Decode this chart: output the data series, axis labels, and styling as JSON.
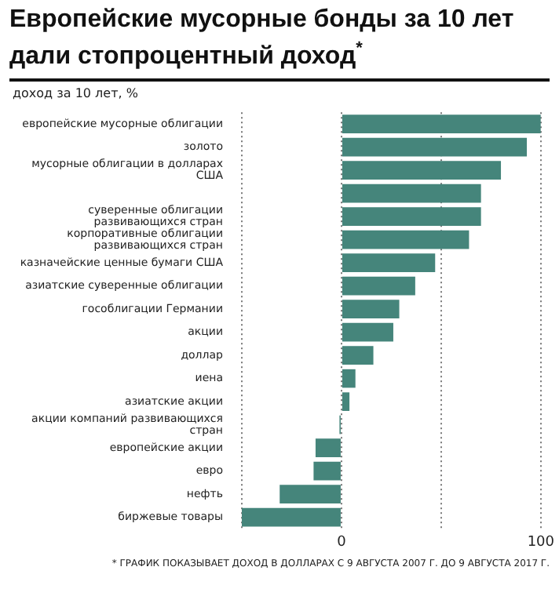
{
  "chart_data": {
    "type": "bar",
    "orientation": "horizontal",
    "title": "Европейские мусорные бонды за 10 лет дали стопроцентный доход$^{*}$",
    "subtitle": "доход за 10 лет, %",
    "categories": [
      "европейские мусорные облигации",
      "золото",
      "мусорные облигации в долларах США",
      null,
      "суверенные облигации развивающихся стран",
      "корпоративные облигации развивающихся стран",
      "казначейские ценные бумаги США",
      "азиатские суверенные облигации",
      "гособлигации Германии",
      "акции",
      "доллар",
      "иена",
      "азиатские акции",
      "акции компаний развивающихся стран",
      "европейские акции",
      "евро",
      "нефть",
      "биржевые товары"
    ],
    "values": [
      100,
      93,
      80,
      70,
      70,
      64,
      47,
      37,
      29,
      26,
      16,
      7,
      4,
      -1,
      -13,
      -14,
      -31,
      -50
    ],
    "color": "#45857b",
    "xlim": [
      -50,
      100
    ],
    "xticks": [
      {
        "value": -50,
        "label": null
      },
      0,
      {
        "value": 50,
        "label": null
      },
      100
    ],
    "grid": "x",
    "legend": false,
    "annotations": [
      "* ГРАФИК ПОКАЗЫВАЕТ ДОХОД В ДОЛЛАРАХ С 9 АВГУСТА 2007 Г. ДО 9 АВГУСТА 2017 Г."
    ]
  }
}
